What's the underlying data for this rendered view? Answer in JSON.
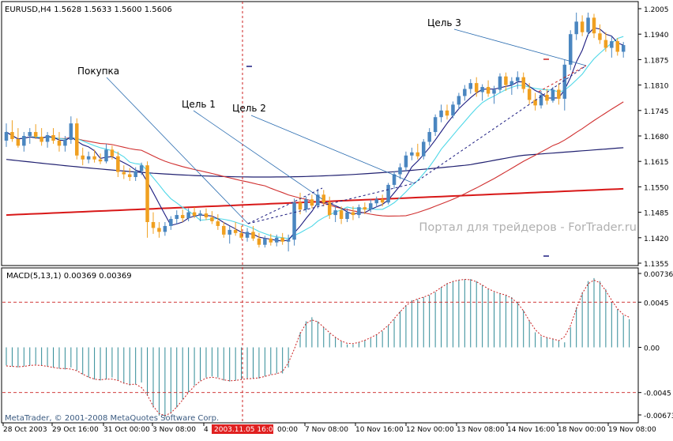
{
  "window": {
    "symbol_label": "EURUSD,H4  1.5628 1.5633 1.5600 1.5606",
    "watermark": "Портал для трейдеров - ForTrader.ru",
    "copyright": "MetaTrader, © 2001-2008 MetaQuotes Software Corp.",
    "colors": {
      "background": "#ffffff",
      "bull_candle": "#4a86c0",
      "bear_candle": "#f0a020",
      "ma_fast": "#1c1c80",
      "ma_medium": "#4fd8e8",
      "ma_slow": "#d03030",
      "ma_long": "#d81818",
      "ma_navy": "#202070",
      "annotation_line": "#2a6cb0",
      "macd_hist": "#2f8a96",
      "macd_signal": "#cc2020",
      "crosshair": "#cc2020",
      "date_badge_bg": "#e02020"
    }
  },
  "annotations": {
    "buy": "Покупка",
    "target1": "Цель 1",
    "target2": "Цель 2",
    "target3": "Цель 3"
  },
  "price_axis": {
    "ticks": [
      "1.2005",
      "1.1940",
      "1.1875",
      "1.1810",
      "1.1745",
      "1.1680",
      "1.1615",
      "1.1550",
      "1.1485",
      "1.1420",
      "1.1355"
    ]
  },
  "macd_panel": {
    "label": "MACD(5,13,1) 0.00369 0.00369",
    "ticks": [
      "0.00736",
      "0.0045",
      "0.00",
      "-0.0045",
      "-0.00673"
    ]
  },
  "time_axis": {
    "labels": [
      "28 Oct 2003",
      "29 Oct 16:00",
      "31 Oct 00:00",
      "3 Nov 08:00",
      "4",
      "7 Nov 08:00",
      "10 Nov 16:00",
      "12 Nov 00:00",
      "13 Nov 08:00",
      "14 Nov 16:00",
      "18 Nov 00:00",
      "19 Nov 08:00"
    ],
    "crosshair_date": "2003.11.05 16:00",
    "crosshair_time_suffix": "00:00"
  },
  "chart_data": {
    "type": "candlestick",
    "symbol": "EURUSD",
    "timeframe": "H4",
    "ylim": [
      1.1355,
      1.2005
    ],
    "candles": [
      [
        1.1668,
        1.1712,
        1.1652,
        1.169
      ],
      [
        1.169,
        1.172,
        1.1665,
        1.1672
      ],
      [
        1.1672,
        1.17,
        1.165,
        1.1655
      ],
      [
        1.1655,
        1.169,
        1.164,
        1.168
      ],
      [
        1.168,
        1.17,
        1.166,
        1.169
      ],
      [
        1.169,
        1.171,
        1.1672,
        1.1678
      ],
      [
        1.1678,
        1.17,
        1.1655,
        1.1665
      ],
      [
        1.1665,
        1.169,
        1.165,
        1.1682
      ],
      [
        1.1682,
        1.17,
        1.166,
        1.1668
      ],
      [
        1.1668,
        1.169,
        1.164,
        1.1655
      ],
      [
        1.1655,
        1.168,
        1.164,
        1.167
      ],
      [
        1.167,
        1.173,
        1.166,
        1.1712
      ],
      [
        1.1712,
        1.1725,
        1.162,
        1.163
      ],
      [
        1.163,
        1.165,
        1.1605,
        1.162
      ],
      [
        1.162,
        1.164,
        1.161,
        1.1628
      ],
      [
        1.1628,
        1.1645,
        1.1612,
        1.162
      ],
      [
        1.162,
        1.1635,
        1.1608,
        1.1615
      ],
      [
        1.1615,
        1.166,
        1.161,
        1.1645
      ],
      [
        1.1645,
        1.1655,
        1.162,
        1.1628
      ],
      [
        1.1628,
        1.164,
        1.1575,
        1.1588
      ],
      [
        1.1588,
        1.1605,
        1.157,
        1.1582
      ],
      [
        1.1582,
        1.1598,
        1.1565,
        1.1575
      ],
      [
        1.1575,
        1.16,
        1.1565,
        1.159
      ],
      [
        1.159,
        1.1612,
        1.158,
        1.1605
      ],
      [
        1.1605,
        1.1615,
        1.142,
        1.146
      ],
      [
        1.146,
        1.1485,
        1.143,
        1.1445
      ],
      [
        1.1445,
        1.146,
        1.142,
        1.1435
      ],
      [
        1.1435,
        1.146,
        1.1425,
        1.145
      ],
      [
        1.145,
        1.1475,
        1.144,
        1.1468
      ],
      [
        1.1468,
        1.149,
        1.1455,
        1.1478
      ],
      [
        1.1478,
        1.1492,
        1.146,
        1.147
      ],
      [
        1.147,
        1.1495,
        1.1462,
        1.1485
      ],
      [
        1.1485,
        1.1498,
        1.147,
        1.1476
      ],
      [
        1.1476,
        1.149,
        1.1462,
        1.1482
      ],
      [
        1.1482,
        1.1495,
        1.1465,
        1.1472
      ],
      [
        1.1472,
        1.1488,
        1.1455,
        1.1462
      ],
      [
        1.1462,
        1.148,
        1.144,
        1.145
      ],
      [
        1.145,
        1.146,
        1.142,
        1.1428
      ],
      [
        1.1428,
        1.145,
        1.1405,
        1.144
      ],
      [
        1.144,
        1.146,
        1.1425,
        1.1432
      ],
      [
        1.1432,
        1.145,
        1.1415,
        1.142
      ],
      [
        1.142,
        1.1445,
        1.141,
        1.1435
      ],
      [
        1.1435,
        1.145,
        1.1412,
        1.1418
      ],
      [
        1.1418,
        1.1432,
        1.1395,
        1.1402
      ],
      [
        1.1402,
        1.1425,
        1.1395,
        1.1418
      ],
      [
        1.1418,
        1.143,
        1.14,
        1.1408
      ],
      [
        1.1408,
        1.1428,
        1.1398,
        1.142
      ],
      [
        1.142,
        1.1432,
        1.1402,
        1.141
      ],
      [
        1.141,
        1.1428,
        1.1385,
        1.1415
      ],
      [
        1.1415,
        1.152,
        1.14,
        1.151
      ],
      [
        1.151,
        1.1535,
        1.148,
        1.1492
      ],
      [
        1.1492,
        1.1525,
        1.1485,
        1.1518
      ],
      [
        1.1518,
        1.153,
        1.1495,
        1.1502
      ],
      [
        1.1502,
        1.1545,
        1.1495,
        1.153
      ],
      [
        1.153,
        1.1542,
        1.15,
        1.151
      ],
      [
        1.151,
        1.1525,
        1.1468,
        1.1478
      ],
      [
        1.1478,
        1.15,
        1.146,
        1.149
      ],
      [
        1.149,
        1.15,
        1.1455,
        1.1468
      ],
      [
        1.1468,
        1.1495,
        1.146,
        1.1485
      ],
      [
        1.1485,
        1.15,
        1.1465,
        1.1478
      ],
      [
        1.1478,
        1.1505,
        1.147,
        1.1498
      ],
      [
        1.1498,
        1.151,
        1.148,
        1.1492
      ],
      [
        1.1492,
        1.1518,
        1.1485,
        1.1508
      ],
      [
        1.1508,
        1.1525,
        1.1498,
        1.1518
      ],
      [
        1.1518,
        1.153,
        1.15,
        1.151
      ],
      [
        1.151,
        1.156,
        1.1505,
        1.1555
      ],
      [
        1.1555,
        1.159,
        1.1545,
        1.1582
      ],
      [
        1.1582,
        1.161,
        1.157,
        1.16
      ],
      [
        1.16,
        1.164,
        1.159,
        1.163
      ],
      [
        1.163,
        1.165,
        1.1618,
        1.1638
      ],
      [
        1.1638,
        1.166,
        1.162,
        1.1628
      ],
      [
        1.1628,
        1.1672,
        1.162,
        1.1665
      ],
      [
        1.1665,
        1.17,
        1.1655,
        1.169
      ],
      [
        1.169,
        1.1735,
        1.168,
        1.1728
      ],
      [
        1.1728,
        1.176,
        1.1715,
        1.1745
      ],
      [
        1.1745,
        1.176,
        1.1722,
        1.1732
      ],
      [
        1.1732,
        1.1768,
        1.1725,
        1.176
      ],
      [
        1.176,
        1.179,
        1.1748,
        1.1782
      ],
      [
        1.1782,
        1.181,
        1.177,
        1.18
      ],
      [
        1.18,
        1.1825,
        1.1788,
        1.1815
      ],
      [
        1.1815,
        1.183,
        1.178,
        1.1792
      ],
      [
        1.1792,
        1.1812,
        1.177,
        1.1805
      ],
      [
        1.1805,
        1.1822,
        1.178,
        1.1788
      ],
      [
        1.1788,
        1.1808,
        1.1762,
        1.1798
      ],
      [
        1.1798,
        1.184,
        1.179,
        1.1832
      ],
      [
        1.1832,
        1.1842,
        1.1795,
        1.181
      ],
      [
        1.181,
        1.183,
        1.1785,
        1.182
      ],
      [
        1.182,
        1.1845,
        1.18,
        1.183
      ],
      [
        1.183,
        1.1842,
        1.179,
        1.18
      ],
      [
        1.18,
        1.1815,
        1.176,
        1.1772
      ],
      [
        1.1772,
        1.179,
        1.1745,
        1.1758
      ],
      [
        1.1758,
        1.1795,
        1.175,
        1.1785
      ],
      [
        1.1785,
        1.18,
        1.176,
        1.177
      ],
      [
        1.177,
        1.1805,
        1.1765,
        1.1798
      ],
      [
        1.1798,
        1.1815,
        1.176,
        1.1775
      ],
      [
        1.1775,
        1.1875,
        1.1745,
        1.1862
      ],
      [
        1.1862,
        1.195,
        1.1848,
        1.194
      ],
      [
        1.194,
        1.1995,
        1.1925,
        1.1972
      ],
      [
        1.1972,
        1.1988,
        1.1935,
        1.1945
      ],
      [
        1.1945,
        1.1995,
        1.1935,
        1.1982
      ],
      [
        1.1982,
        1.1992,
        1.193,
        1.1942
      ],
      [
        1.1942,
        1.1965,
        1.1915,
        1.1925
      ],
      [
        1.1925,
        1.1945,
        1.1895,
        1.1905
      ],
      [
        1.1905,
        1.1935,
        1.188,
        1.1922
      ],
      [
        1.1922,
        1.193,
        1.1885,
        1.1895
      ],
      [
        1.1895,
        1.192,
        1.188,
        1.1912
      ]
    ],
    "macd": {
      "name": "MACD(5,13,1)",
      "ylim": [
        -0.00673,
        0.00736
      ],
      "levels": [
        0.0045,
        -0.0045
      ],
      "histogram": [
        -0.0018,
        -0.0019,
        -0.002,
        -0.0019,
        -0.0018,
        -0.0017,
        -0.0018,
        -0.0019,
        -0.002,
        -0.0021,
        -0.0022,
        -0.002,
        -0.0023,
        -0.0027,
        -0.003,
        -0.0032,
        -0.0033,
        -0.0032,
        -0.003,
        -0.0033,
        -0.0036,
        -0.0038,
        -0.0037,
        -0.0035,
        -0.0048,
        -0.006,
        -0.0068,
        -0.007,
        -0.0066,
        -0.006,
        -0.0052,
        -0.0045,
        -0.0038,
        -0.0033,
        -0.003,
        -0.0029,
        -0.003,
        -0.0033,
        -0.0034,
        -0.0033,
        -0.0032,
        -0.0031,
        -0.0031,
        -0.0031,
        -0.0029,
        -0.0027,
        -0.0026,
        -0.0026,
        -0.002,
        0.0,
        0.0015,
        0.0026,
        0.003,
        0.0026,
        0.002,
        0.0014,
        0.001,
        0.0006,
        0.0003,
        0.0003,
        0.0005,
        0.0007,
        0.0009,
        0.0013,
        0.0016,
        0.0022,
        0.0028,
        0.0036,
        0.0042,
        0.0047,
        0.0048,
        0.005,
        0.0052,
        0.0055,
        0.006,
        0.0064,
        0.0066,
        0.0067,
        0.0068,
        0.0068,
        0.0066,
        0.0062,
        0.0058,
        0.0055,
        0.0054,
        0.0052,
        0.005,
        0.0045,
        0.0037,
        0.0027,
        0.0015,
        0.0011,
        0.001,
        0.0008,
        0.0007,
        0.0005,
        0.002,
        0.004,
        0.0055,
        0.0066,
        0.0069,
        0.0066,
        0.0058,
        0.0045,
        0.0038,
        0.0032,
        0.0028
      ]
    }
  }
}
